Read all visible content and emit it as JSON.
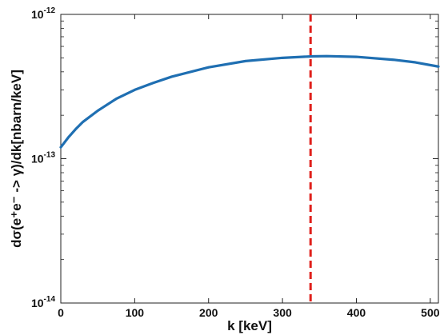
{
  "chart_data": {
    "type": "line",
    "xlabel": "k [keV]",
    "ylabel": "dσ(e⁺e⁻ -> γ)/dk[nbarn/keV]",
    "xlim": [
      0,
      511
    ],
    "ylim": [
      1e-14,
      1e-12
    ],
    "yscale": "log",
    "grid": false,
    "x_ticks": [
      0,
      100,
      200,
      300,
      400,
      500
    ],
    "x_tick_labels": [
      "0",
      "100",
      "200",
      "300",
      "400",
      "500"
    ],
    "y_ticks": [
      1e-14,
      1e-13,
      1e-12
    ],
    "y_tick_labels": [
      "10-14",
      "10-13",
      "10-12"
    ],
    "series": [
      {
        "color": "#1f6fb2",
        "style": "solid",
        "x": [
          0,
          10,
          20,
          30,
          50,
          75,
          100,
          125,
          150,
          200,
          250,
          300,
          340,
          360,
          400,
          450,
          480,
          511
        ],
        "y": [
          1.2e-13,
          1.4e-13,
          1.6e-13,
          1.8e-13,
          2.15e-13,
          2.6e-13,
          3e-13,
          3.35e-13,
          3.7e-13,
          4.3e-13,
          4.75e-13,
          5e-13,
          5.12e-13,
          5.14e-13,
          5.08e-13,
          4.85e-13,
          4.65e-13,
          4.35e-13
        ]
      }
    ],
    "annotations": [
      {
        "type": "vline",
        "x": 338,
        "color": "#e0201b",
        "style": "dashed"
      }
    ]
  }
}
